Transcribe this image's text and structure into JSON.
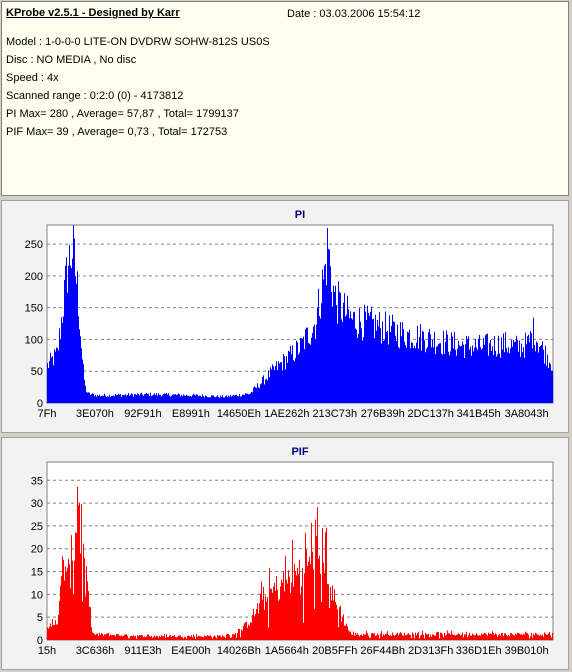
{
  "header": {
    "title": "KProbe v2.5.1 - Designed by Karr",
    "date": "Date : 03.03.2006 15:54:12",
    "lines": [
      "Model : 1-0-0-0 LITE-ON DVDRW SOHW-812S  US0S",
      "Disc : NO MEDIA , No disc",
      "Speed : 4x",
      "Scanned range : 0:2:0 (0) - 4173812",
      "PI Max= 280 , Average= 57,87 , Total= 1799137",
      "PIF Max= 39 , Average= 0,73 , Total= 172753"
    ]
  },
  "chart_data": [
    {
      "type": "area",
      "title": "PI",
      "color": "#0000ff",
      "ylim": [
        0,
        280
      ],
      "yticks": [
        0,
        50,
        100,
        150,
        200,
        250
      ],
      "xticks": [
        "7Fh",
        "3E070h",
        "92F91h",
        "E8991h",
        "14650Eh",
        "1AE262h",
        "213C73h",
        "276B39h",
        "2DC137h",
        "341B45h",
        "3A8043h"
      ],
      "grid": true,
      "profile_x": [
        0,
        0.02,
        0.03,
        0.04,
        0.05,
        0.06,
        0.07,
        0.075,
        0.08,
        0.1,
        0.2,
        0.3,
        0.35,
        0.4,
        0.45,
        0.5,
        0.53,
        0.55,
        0.555,
        0.56,
        0.57,
        0.6,
        0.65,
        0.7,
        0.75,
        0.8,
        0.85,
        0.9,
        0.93,
        0.95,
        0.96,
        0.98,
        1.0
      ],
      "profile_y": [
        60,
        80,
        150,
        220,
        250,
        180,
        60,
        25,
        15,
        12,
        14,
        12,
        10,
        15,
        55,
        90,
        130,
        220,
        260,
        200,
        165,
        135,
        125,
        112,
        105,
        95,
        90,
        95,
        90,
        95,
        115,
        85,
        60
      ]
    },
    {
      "type": "area",
      "title": "PIF",
      "color": "#ff0000",
      "ylim": [
        0,
        39
      ],
      "yticks": [
        0,
        5,
        10,
        15,
        20,
        25,
        30,
        35
      ],
      "xticks": [
        "15h",
        "3C636h",
        "911E3h",
        "E4E00h",
        "14026Bh",
        "1A5664h",
        "20B5FFh",
        "26F44Bh",
        "2D313Fh",
        "336D1Eh",
        "39B010h"
      ],
      "grid": true,
      "profile_x": [
        0,
        0.02,
        0.03,
        0.035,
        0.04,
        0.05,
        0.06,
        0.065,
        0.07,
        0.09,
        0.2,
        0.35,
        0.38,
        0.4,
        0.42,
        0.45,
        0.5,
        0.53,
        0.55,
        0.56,
        0.6,
        0.8,
        1.0
      ],
      "profile_y": [
        2,
        6,
        16,
        21,
        12,
        24,
        36,
        38,
        22,
        1.5,
        1,
        1,
        2,
        5,
        9,
        13,
        18,
        22,
        23,
        12,
        1.5,
        1.5,
        1.5
      ]
    }
  ]
}
